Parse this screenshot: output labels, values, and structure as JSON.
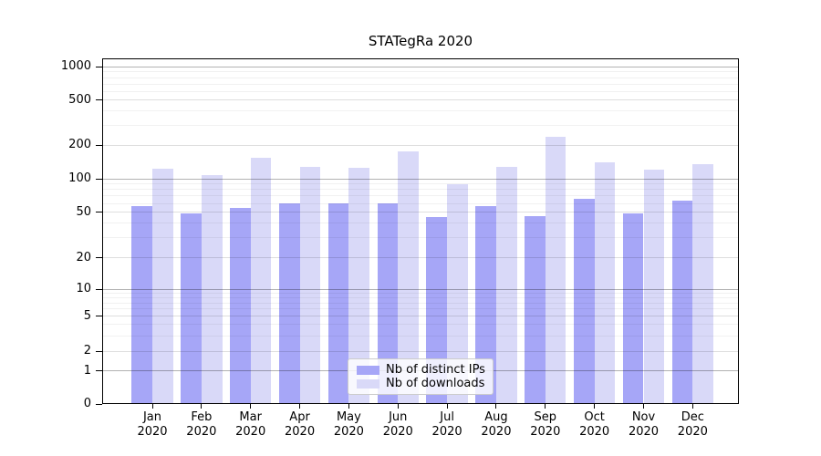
{
  "title": "STATegRa 2020",
  "chart_data": {
    "type": "bar",
    "title": "STATegRa 2020",
    "categories": [
      "Jan 2020",
      "Feb 2020",
      "Mar 2020",
      "Apr 2020",
      "May 2020",
      "Jun 2020",
      "Jul 2020",
      "Aug 2020",
      "Sep 2020",
      "Oct 2020",
      "Nov 2020",
      "Dec 2020"
    ],
    "month_labels": [
      "Jan",
      "Feb",
      "Mar",
      "Apr",
      "May",
      "Jun",
      "Jul",
      "Aug",
      "Sep",
      "Oct",
      "Nov",
      "Dec"
    ],
    "year_label": "2020",
    "series": [
      {
        "name": "Nb of distinct IPs",
        "color": "#a6a6f7",
        "values": [
          57,
          49,
          55,
          60,
          60,
          60,
          45,
          57,
          46,
          66,
          49,
          63
        ]
      },
      {
        "name": "Nb of downloads",
        "color": "#d9d9f8",
        "values": [
          124,
          107,
          153,
          127,
          126,
          176,
          90,
          127,
          235,
          141,
          121,
          135
        ]
      }
    ],
    "xlabel": "",
    "ylabel": "",
    "yscale": "symlog",
    "yticks": [
      0,
      1,
      2,
      5,
      10,
      20,
      50,
      100,
      200,
      500,
      1000
    ],
    "ylim": [
      0,
      1200
    ],
    "grid": true,
    "grid_emphasized_lines": [
      1,
      10,
      100,
      1000
    ],
    "legend_position": "lower center"
  },
  "colors": {
    "ips_bar": "#a6a6f7",
    "downloads_bar": "#d9d9f8",
    "axis": "#000000",
    "grid_major": "rgba(0,0,0,0.13)",
    "grid_minor": "rgba(0,0,0,0.055)",
    "grid_emphasis": "rgba(0,0,0,0.30)",
    "legend_border": "#cccccc"
  }
}
